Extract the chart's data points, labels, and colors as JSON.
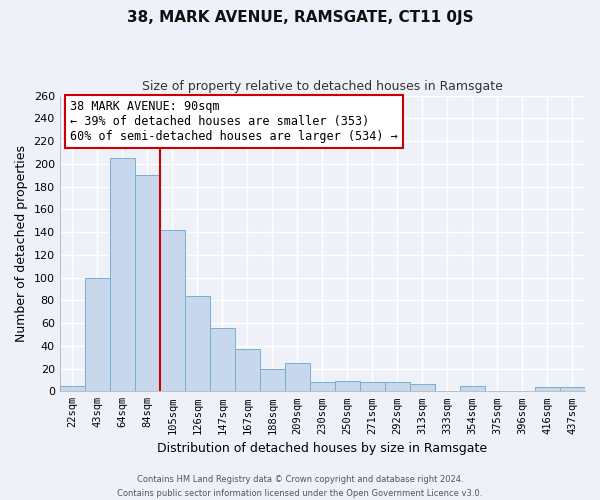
{
  "title": "38, MARK AVENUE, RAMSGATE, CT11 0JS",
  "subtitle": "Size of property relative to detached houses in Ramsgate",
  "xlabel": "Distribution of detached houses by size in Ramsgate",
  "ylabel": "Number of detached properties",
  "categories": [
    "22sqm",
    "43sqm",
    "64sqm",
    "84sqm",
    "105sqm",
    "126sqm",
    "147sqm",
    "167sqm",
    "188sqm",
    "209sqm",
    "230sqm",
    "250sqm",
    "271sqm",
    "292sqm",
    "313sqm",
    "333sqm",
    "354sqm",
    "375sqm",
    "396sqm",
    "416sqm",
    "437sqm"
  ],
  "values": [
    5,
    100,
    205,
    190,
    142,
    84,
    56,
    37,
    20,
    25,
    8,
    9,
    8,
    8,
    6,
    0,
    5,
    0,
    0,
    4,
    4
  ],
  "bar_color": "#c8d8ec",
  "bar_edge_color": "#7aaed0",
  "highlight_color": "#cc0000",
  "annotation_title": "38 MARK AVENUE: 90sqm",
  "annotation_line1": "← 39% of detached houses are smaller (353)",
  "annotation_line2": "60% of semi-detached houses are larger (534) →",
  "annotation_box_color": "#ffffff",
  "annotation_box_edge": "#cc0000",
  "ylim": [
    0,
    260
  ],
  "yticks": [
    0,
    20,
    40,
    60,
    80,
    100,
    120,
    140,
    160,
    180,
    200,
    220,
    240,
    260
  ],
  "footer_line1": "Contains HM Land Registry data © Crown copyright and database right 2024.",
  "footer_line2": "Contains public sector information licensed under the Open Government Licence v3.0.",
  "background_color": "#eef2f8",
  "grid_color": "#d0d8e8",
  "title_fontsize": 11,
  "subtitle_fontsize": 9,
  "ylabel_fontsize": 9,
  "xlabel_fontsize": 9
}
